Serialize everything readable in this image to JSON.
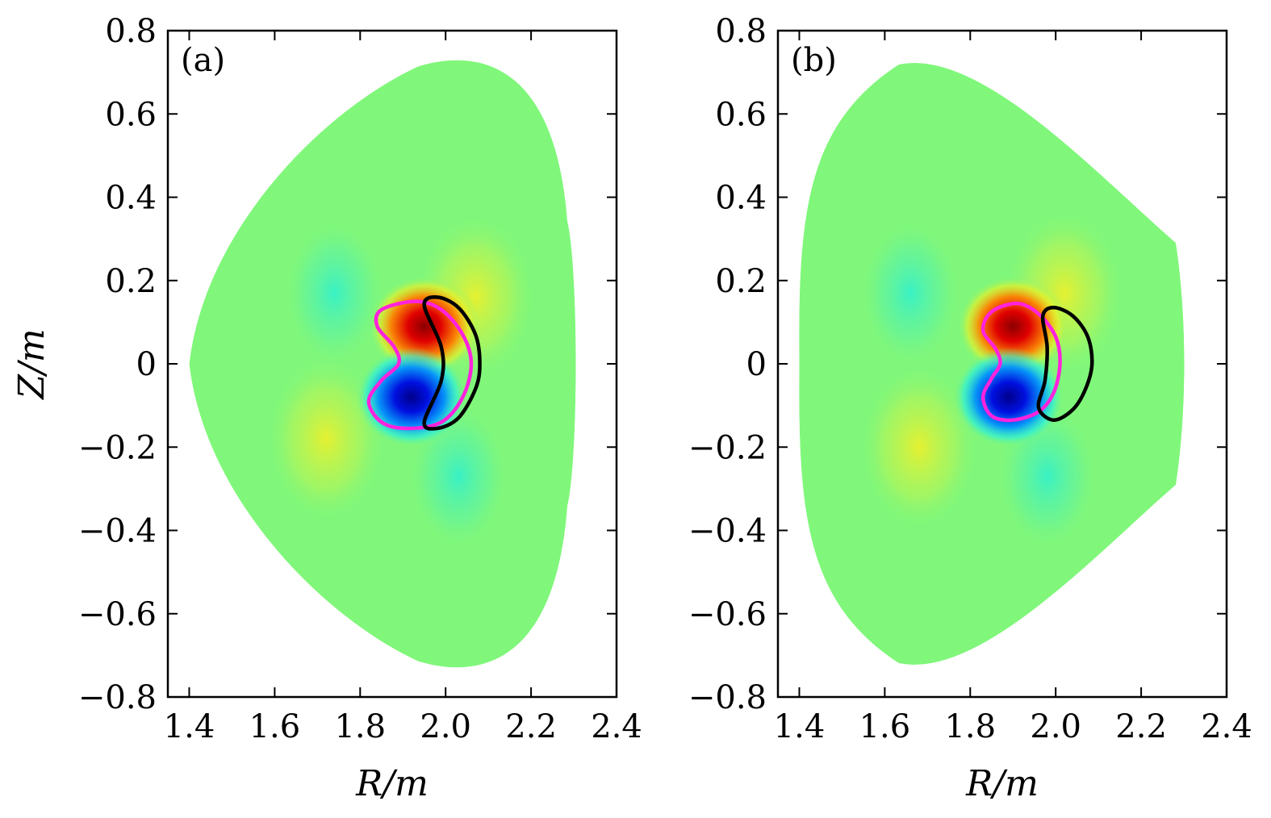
{
  "chart_data": [
    {
      "type": "heatmap",
      "panel_label": "(a)",
      "xlabel": "R/m",
      "ylabel": "Z/m",
      "xlim": [
        1.35,
        2.4
      ],
      "ylim": [
        -0.8,
        0.8
      ],
      "x_ticks": [
        1.4,
        1.6,
        1.8,
        2.0,
        2.2,
        2.4
      ],
      "x_tick_labels": [
        "1.4",
        "1.6",
        "1.8",
        "2.0",
        "2.2",
        "2.4"
      ],
      "y_ticks": [
        0.8,
        0.6,
        0.4,
        0.2,
        0,
        -0.2,
        -0.4,
        -0.6,
        -0.8
      ],
      "y_tick_labels": [
        "0.8",
        "0.6",
        "0.4",
        "0.2",
        "0",
        "−0.2",
        "−0.4",
        "−0.6",
        "−0.8"
      ],
      "grid": false,
      "colors": {
        "background_field": "#80f77a",
        "positive_peak": "#8b0000",
        "negative_peak": "#00008b",
        "contour_inner": "#ff22dd",
        "contour_outer": "#000000"
      },
      "plasma_boundary": {
        "r_min": 1.4,
        "r_max": 2.3,
        "z_min": -0.73,
        "z_max": 0.73,
        "r_at_z_max": 2.05
      },
      "features": [
        {
          "kind": "positive_lobe",
          "r": 1.95,
          "z": 0.09,
          "amplitude": 1.0
        },
        {
          "kind": "negative_lobe",
          "r": 1.92,
          "z": -0.08,
          "amplitude": -1.0
        },
        {
          "kind": "weak_positive",
          "r": 2.07,
          "z": 0.16,
          "amplitude": 0.28
        },
        {
          "kind": "weak_negative",
          "r": 1.74,
          "z": 0.17,
          "amplitude": -0.18
        },
        {
          "kind": "weak_positive",
          "r": 1.72,
          "z": -0.18,
          "amplitude": 0.18
        },
        {
          "kind": "weak_negative",
          "r": 2.03,
          "z": -0.27,
          "amplitude": -0.16
        }
      ],
      "contours": [
        {
          "color": "magenta",
          "points": [
            [
              1.93,
              0.15
            ],
            [
              1.99,
              0.13
            ],
            [
              2.04,
              0.07
            ],
            [
              2.06,
              0.0
            ],
            [
              2.04,
              -0.08
            ],
            [
              1.99,
              -0.14
            ],
            [
              1.91,
              -0.155
            ],
            [
              1.85,
              -0.14
            ],
            [
              1.82,
              -0.09
            ],
            [
              1.85,
              -0.04
            ],
            [
              1.89,
              0.0
            ],
            [
              1.88,
              0.04
            ],
            [
              1.84,
              0.09
            ],
            [
              1.85,
              0.13
            ]
          ]
        },
        {
          "color": "black",
          "points": [
            [
              1.95,
              0.14
            ],
            [
              1.99,
              0.04
            ],
            [
              1.99,
              -0.04
            ],
            [
              1.95,
              -0.14
            ],
            [
              1.98,
              -0.155
            ],
            [
              2.03,
              -0.13
            ],
            [
              2.07,
              -0.06
            ],
            [
              2.08,
              0.0
            ],
            [
              2.07,
              0.07
            ],
            [
              2.03,
              0.135
            ],
            [
              1.98,
              0.16
            ]
          ]
        }
      ]
    },
    {
      "type": "heatmap",
      "panel_label": "(b)",
      "xlabel": "R/m",
      "ylabel": "",
      "xlim": [
        1.35,
        2.4
      ],
      "ylim": [
        -0.8,
        0.8
      ],
      "x_ticks": [
        1.4,
        1.6,
        1.8,
        2.0,
        2.2,
        2.4
      ],
      "x_tick_labels": [
        "1.4",
        "1.6",
        "1.8",
        "2.0",
        "2.2",
        "2.4"
      ],
      "y_ticks": [
        0.8,
        0.6,
        0.4,
        0.2,
        0,
        -0.2,
        -0.4,
        -0.6,
        -0.8
      ],
      "y_tick_labels": [
        "0.8",
        "0.6",
        "0.4",
        "0.2",
        "0",
        "−0.2",
        "−0.4",
        "−0.6",
        "−0.8"
      ],
      "grid": false,
      "colors": {
        "background_field": "#80f77a",
        "positive_peak": "#8b0000",
        "negative_peak": "#00008b",
        "contour_inner": "#ff22dd",
        "contour_outer": "#000000"
      },
      "plasma_boundary": {
        "r_min": 1.4,
        "r_max": 2.3,
        "z_min": -0.73,
        "z_max": 0.73,
        "r_at_z_max": 1.67
      },
      "features": [
        {
          "kind": "positive_lobe",
          "r": 1.9,
          "z": 0.09,
          "amplitude": 1.0
        },
        {
          "kind": "negative_lobe",
          "r": 1.89,
          "z": -0.08,
          "amplitude": -1.0
        },
        {
          "kind": "weak_positive",
          "r": 2.02,
          "z": 0.17,
          "amplitude": 0.26
        },
        {
          "kind": "weak_negative",
          "r": 1.66,
          "z": 0.17,
          "amplitude": -0.16
        },
        {
          "kind": "weak_positive",
          "r": 1.68,
          "z": -0.2,
          "amplitude": 0.16
        },
        {
          "kind": "weak_negative",
          "r": 1.98,
          "z": -0.27,
          "amplitude": -0.14
        }
      ],
      "contours": [
        {
          "color": "magenta",
          "points": [
            [
              1.91,
              0.145
            ],
            [
              1.96,
              0.12
            ],
            [
              2.0,
              0.065
            ],
            [
              2.01,
              0.0
            ],
            [
              1.995,
              -0.07
            ],
            [
              1.96,
              -0.115
            ],
            [
              1.9,
              -0.135
            ],
            [
              1.85,
              -0.125
            ],
            [
              1.83,
              -0.08
            ],
            [
              1.85,
              -0.035
            ],
            [
              1.87,
              0.0
            ],
            [
              1.86,
              0.035
            ],
            [
              1.83,
              0.08
            ],
            [
              1.85,
              0.125
            ]
          ]
        },
        {
          "color": "black",
          "points": [
            [
              1.97,
              0.115
            ],
            [
              1.98,
              0.04
            ],
            [
              1.975,
              -0.04
            ],
            [
              1.96,
              -0.105
            ],
            [
              1.995,
              -0.135
            ],
            [
              2.04,
              -0.11
            ],
            [
              2.07,
              -0.06
            ],
            [
              2.085,
              0.0
            ],
            [
              2.075,
              0.065
            ],
            [
              2.04,
              0.115
            ],
            [
              1.995,
              0.135
            ]
          ]
        }
      ]
    }
  ]
}
